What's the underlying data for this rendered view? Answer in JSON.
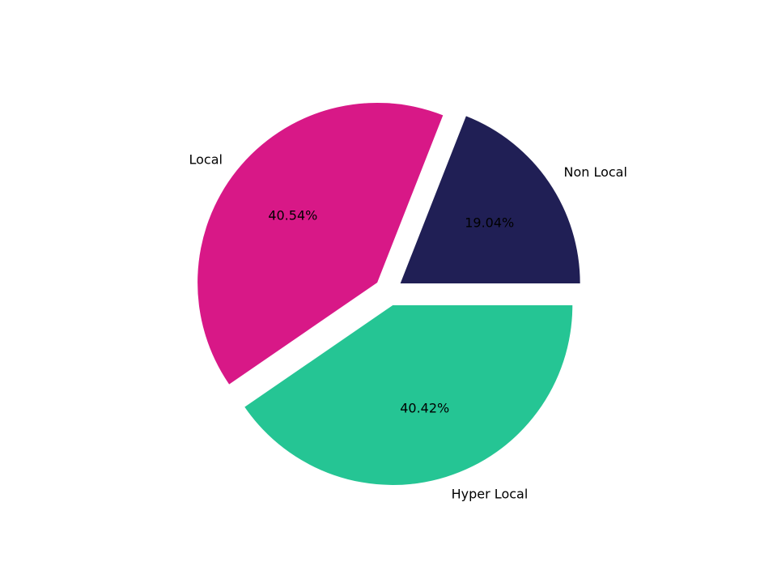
{
  "chart_data": {
    "type": "pie",
    "title": "",
    "categories": [
      "Non Local",
      "Local",
      "Hyper Local"
    ],
    "values": [
      19.04,
      40.54,
      40.42
    ],
    "value_labels": [
      "19.04%",
      "40.54%",
      "40.42%"
    ],
    "colors": [
      "#201f55",
      "#d81887",
      "#25c594"
    ],
    "start_angle_deg": 0,
    "direction": "counterclockwise",
    "exploded": true,
    "legend": "none"
  }
}
